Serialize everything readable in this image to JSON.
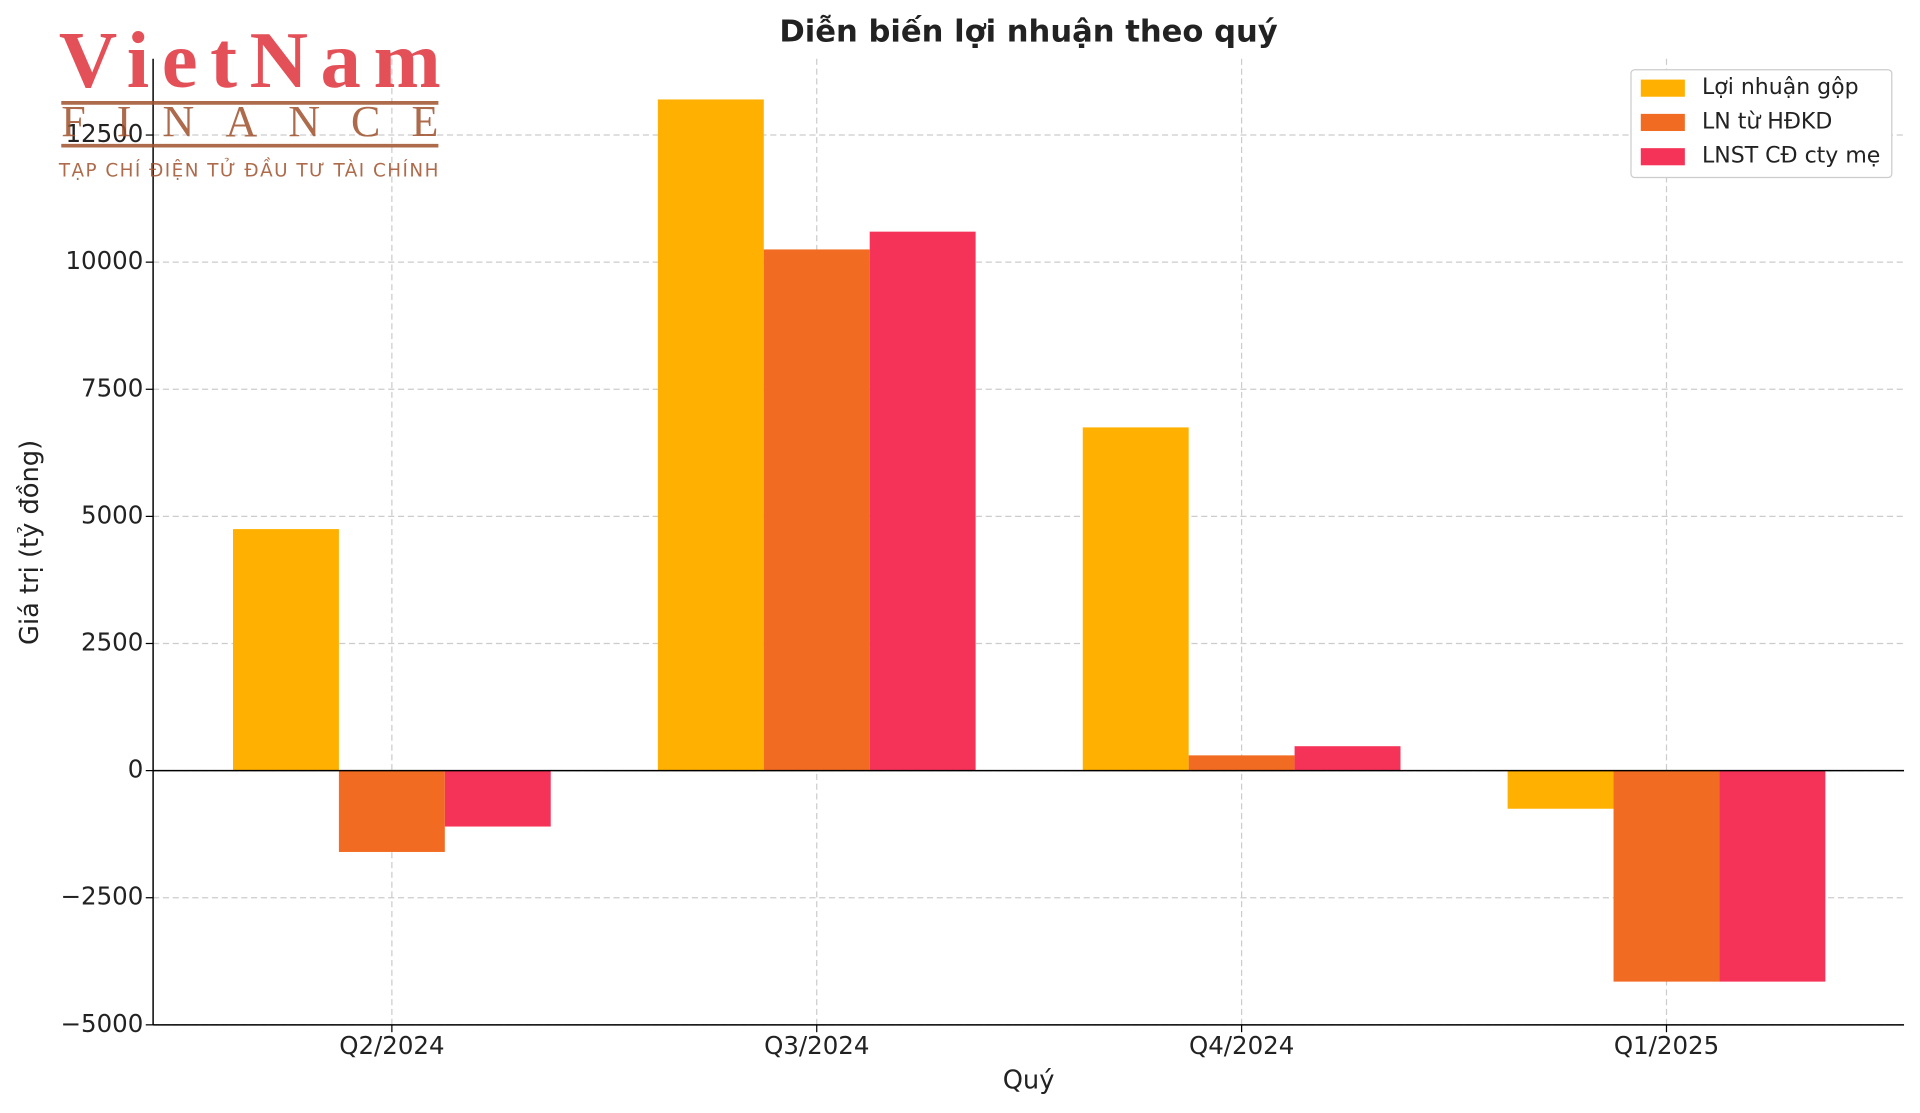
{
  "logo": {
    "name": "VietNam",
    "sub": "FINANCE",
    "tagline": "TẠP CHÍ ĐIỆN TỬ ĐẦU TƯ TÀI CHÍNH"
  },
  "chart_data": {
    "type": "bar",
    "title": "Diễn biến lợi nhuận theo quý",
    "xlabel": "Quý",
    "ylabel": "Giá trị (tỷ đồng)",
    "categories": [
      "Q2/2024",
      "Q3/2024",
      "Q4/2024",
      "Q1/2025"
    ],
    "series": [
      {
        "name": "Lợi nhuận gộp",
        "color": "#FFB000",
        "values": [
          4750,
          13200,
          6750,
          -750
        ]
      },
      {
        "name": "LN từ HĐKD",
        "color": "#F26B22",
        "values": [
          -1600,
          10250,
          300,
          -4150
        ]
      },
      {
        "name": "LNST CĐ cty mẹ",
        "color": "#F53358",
        "values": [
          -1100,
          10600,
          480,
          -4150
        ]
      }
    ],
    "ylim": [
      -5000,
      14000
    ],
    "yticks": [
      {
        "value": -5000,
        "label": "−5000"
      },
      {
        "value": -2500,
        "label": "−2500"
      },
      0,
      2500,
      5000,
      7500,
      10000,
      12500
    ],
    "grid": true,
    "legend": "upper right"
  }
}
